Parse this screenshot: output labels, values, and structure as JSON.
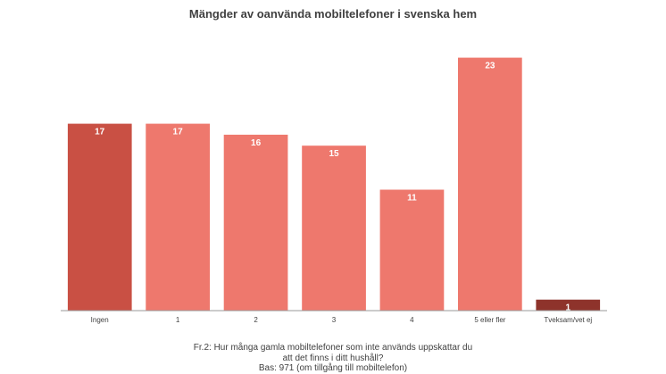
{
  "chart_data": {
    "type": "bar",
    "title": "Mängder av oanvända mobiltelefoner i svenska hem",
    "categories": [
      "Ingen",
      "1",
      "2",
      "3",
      "4",
      "5 eller fler",
      "Tveksam/vet ej"
    ],
    "values": [
      17,
      17,
      16,
      15,
      11,
      23,
      1
    ],
    "value_labels": [
      "17",
      "17",
      "16",
      "15",
      "11",
      "23",
      "1"
    ],
    "bar_colors": [
      "#c95044",
      "#ee786d",
      "#ee786d",
      "#ee786d",
      "#ee786d",
      "#ee786d",
      "#8e332b"
    ],
    "ylim": [
      0,
      25
    ],
    "xlabel": "",
    "ylabel": "",
    "grid": false
  },
  "footnote": {
    "line1": "Fr.2: Hur många gamla mobiltelefoner som inte används uppskattar du",
    "line2": "att det finns i ditt hushåll?",
    "line3": "Bas: 971 (om tillgång till mobiltelefon)"
  }
}
